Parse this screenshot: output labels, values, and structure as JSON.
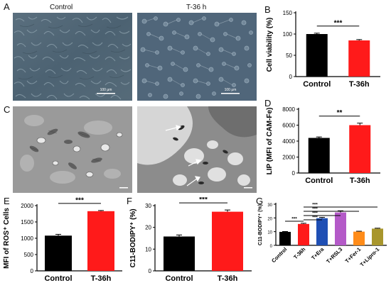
{
  "figure": {
    "panel_labels": [
      "A",
      "B",
      "C",
      "D",
      "E",
      "F",
      "G"
    ],
    "panel_a": {
      "left_title": "Control",
      "right_title": "T-36 h",
      "scale_left": "100 μm",
      "scale_right": "100 μm"
    },
    "panel_c": {
      "arrow_count": 3
    }
  },
  "colors": {
    "control": "#000000",
    "treated": "#ff1a1a",
    "era": "#1f4fb4",
    "rsl3": "#b45ac8",
    "fer1": "#ff8c1a",
    "lipro1": "#a8962d"
  },
  "chart_data": [
    {
      "id": "B",
      "type": "bar",
      "categories": [
        "Control",
        "T-36h"
      ],
      "values": [
        100,
        85
      ],
      "errors": [
        2,
        2
      ],
      "ylabel": "Cell viability (%)",
      "ylim": [
        0,
        150
      ],
      "yticks": [
        0,
        50,
        100,
        150
      ],
      "significance": [
        {
          "from": 0,
          "to": 1,
          "label": "***"
        }
      ],
      "colors": [
        "#000000",
        "#ff1a1a"
      ]
    },
    {
      "id": "D",
      "type": "bar",
      "categories": [
        "Control",
        "T-36h"
      ],
      "values": [
        4400,
        6000
      ],
      "errors": [
        120,
        250
      ],
      "ylabel": "LIP (MFI of CAM-Fe)",
      "ylim": [
        0,
        8000
      ],
      "yticks": [
        0,
        2000,
        4000,
        6000,
        8000
      ],
      "significance": [
        {
          "from": 0,
          "to": 1,
          "label": "**"
        }
      ],
      "colors": [
        "#000000",
        "#ff1a1a"
      ]
    },
    {
      "id": "E",
      "type": "bar",
      "categories": [
        "Control",
        "T-36h"
      ],
      "values": [
        1080,
        1830
      ],
      "errors": [
        40,
        20
      ],
      "ylabel": "MFI of ROS⁺ Cells",
      "ylim": [
        0,
        2000
      ],
      "yticks": [
        0,
        500,
        1000,
        1500,
        2000
      ],
      "significance": [
        {
          "from": 0,
          "to": 1,
          "label": "***"
        }
      ],
      "colors": [
        "#000000",
        "#ff1a1a"
      ]
    },
    {
      "id": "F",
      "type": "bar",
      "categories": [
        "Control",
        "T-36h"
      ],
      "values": [
        15.8,
        27.2
      ],
      "errors": [
        0.7,
        0.8
      ],
      "ylabel": "C11-BODIPY⁺ (%)",
      "ylim": [
        0,
        30
      ],
      "yticks": [
        0,
        10,
        20,
        30
      ],
      "significance": [
        {
          "from": 0,
          "to": 1,
          "label": "***"
        }
      ],
      "colors": [
        "#000000",
        "#ff1a1a"
      ]
    },
    {
      "id": "G",
      "type": "bar",
      "categories": [
        "Control",
        "T-36h",
        "T+Era",
        "T+RSL3",
        "T+Fer-1",
        "T+Lipro-1"
      ],
      "values": [
        9.8,
        15.6,
        19.8,
        24,
        10,
        12.2
      ],
      "errors": [
        0.3,
        0.5,
        0.6,
        1.2,
        0.3,
        0.3
      ],
      "ylabel": "C11-BODIPY⁺ (%)",
      "ylim": [
        0,
        30
      ],
      "yticks": [
        0,
        10,
        20,
        30
      ],
      "significance": [
        {
          "from": 0,
          "to": 1,
          "label": "***"
        },
        {
          "from": 1,
          "to": 2,
          "label": "***"
        },
        {
          "from": 1,
          "to": 3,
          "label": "***"
        },
        {
          "from": 1,
          "to": 4,
          "label": "***"
        },
        {
          "from": 1,
          "to": 5,
          "label": "***"
        }
      ],
      "colors": [
        "#000000",
        "#ff1a1a",
        "#1f4fb4",
        "#b45ac8",
        "#ff8c1a",
        "#a8962d"
      ]
    }
  ]
}
